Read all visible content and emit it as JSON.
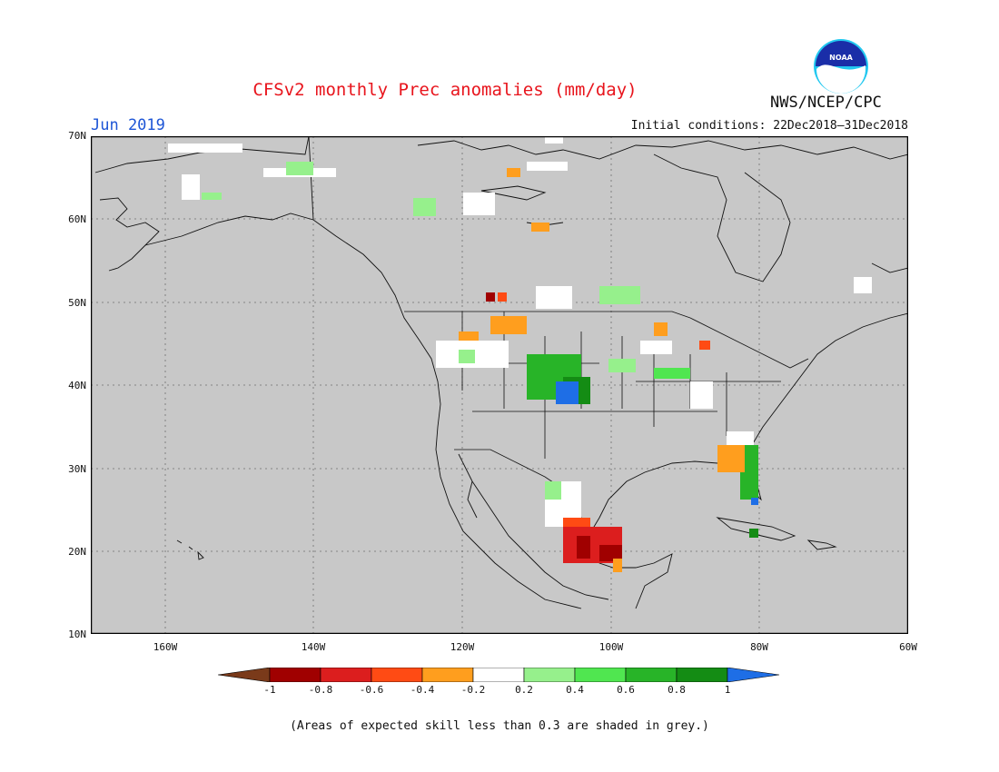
{
  "header": {
    "title": "CFSv2 monthly Prec anomalies (mm/day)",
    "month": "Jun 2019",
    "initial_conditions": "Initial conditions: 22Dec2018–31Dec2018",
    "agency": "NWS/NCEP/CPC",
    "logo_text": "NOAA"
  },
  "axes": {
    "lat_labels": [
      "70N",
      "60N",
      "50N",
      "40N",
      "30N",
      "20N",
      "10N"
    ],
    "lon_labels": [
      "160W",
      "140W",
      "120W",
      "100W",
      "80W",
      "60W"
    ]
  },
  "legend": {
    "labels": [
      "-1",
      "-0.8",
      "-0.6",
      "-0.4",
      "-0.2",
      "0.2",
      "0.4",
      "0.6",
      "0.8",
      "1"
    ],
    "colors": {
      "below_min": "#7a3a1a",
      "bins": [
        "#a00000",
        "#dc1e1e",
        "#ff4b14",
        "#ff9e1e",
        "#ffffff",
        "#96f08c",
        "#50e650",
        "#28b428",
        "#148c14"
      ],
      "above_max": "#1e6ee6"
    }
  },
  "map": {
    "background": "#c8c8c8",
    "extent": "170W–60W, 10N–70N"
  },
  "footnote": "(Areas of expected skill less than 0.3 are shaded in grey.)"
}
